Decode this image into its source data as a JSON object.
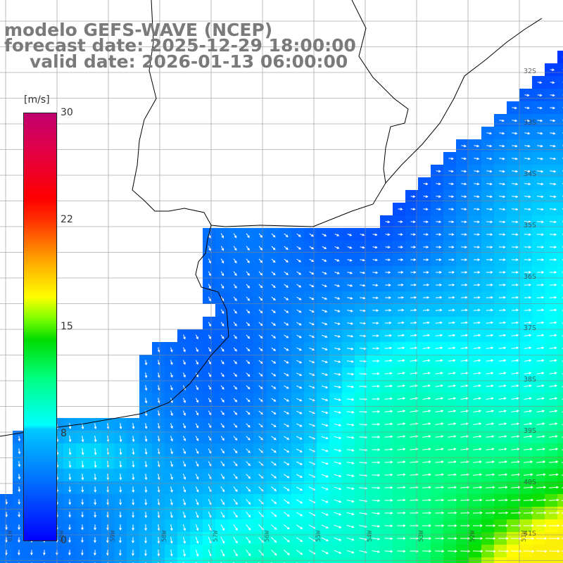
{
  "title": {
    "line1": "modelo GEFS-WAVE (NCEP)",
    "line2": "forecast date: 2025-12-29 18:00:00",
    "line3": "valid date: 2026-01-13 06:00:00"
  },
  "colorbar": {
    "units": "[m/s]",
    "ticks": [
      "30",
      "22",
      "15",
      "8",
      "0"
    ],
    "tick_values": [
      30,
      22,
      15,
      8,
      0
    ],
    "colors": [
      "#0000ff",
      "#00c8ff",
      "#00ffff",
      "#00dd00",
      "#ffff00",
      "#ff3000",
      "#c0006f"
    ]
  },
  "map": {
    "variable": "wind speed and direction",
    "lat_labels": [
      "32S",
      "33S",
      "34S",
      "35S",
      "36S",
      "37S",
      "38S",
      "39S",
      "40S",
      "41S"
    ],
    "lon_labels": [
      "61W",
      "60W",
      "59W",
      "58W",
      "57W",
      "56W",
      "55W",
      "54W",
      "53W",
      "52W",
      "51W"
    ],
    "land_color": "#ffffff",
    "grid_color": "#888888",
    "arrow_color": "#ffffff"
  }
}
